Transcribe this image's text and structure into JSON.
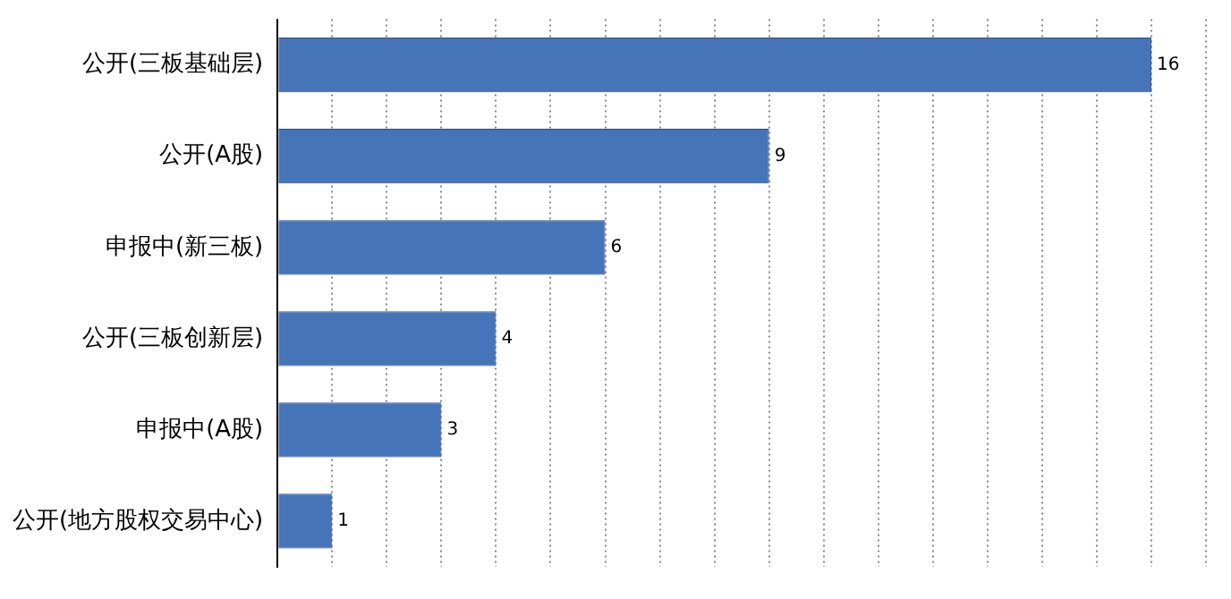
{
  "chart_data": {
    "type": "bar",
    "orientation": "horizontal",
    "categories": [
      "公开(三板基础层)",
      "公开(A股)",
      "申报中(新三板)",
      "公开(三板创新层)",
      "申报中(A股)",
      "公开(地方股权交易中心)"
    ],
    "values": [
      16,
      9,
      6,
      4,
      3,
      1
    ],
    "color": "#4674b9",
    "xlim": [
      0,
      17
    ],
    "xticks": [
      {
        "value": 0,
        "label": null
      },
      {
        "value": 1,
        "label": null
      },
      {
        "value": 2,
        "label": null
      },
      {
        "value": 3,
        "label": null
      },
      {
        "value": 4,
        "label": null
      },
      {
        "value": 5,
        "label": null
      },
      {
        "value": 6,
        "label": null
      },
      {
        "value": 7,
        "label": null
      },
      {
        "value": 8,
        "label": null
      },
      {
        "value": 9,
        "label": null
      },
      {
        "value": 10,
        "label": null
      },
      {
        "value": 11,
        "label": null
      },
      {
        "value": 12,
        "label": null
      },
      {
        "value": 13,
        "label": null
      },
      {
        "value": 14,
        "label": null
      },
      {
        "value": 15,
        "label": null
      },
      {
        "value": 16,
        "label": null
      },
      {
        "value": 17,
        "label": null
      }
    ],
    "grid": "x",
    "tick_labels": "y",
    "data_labels": true,
    "legend": false
  }
}
